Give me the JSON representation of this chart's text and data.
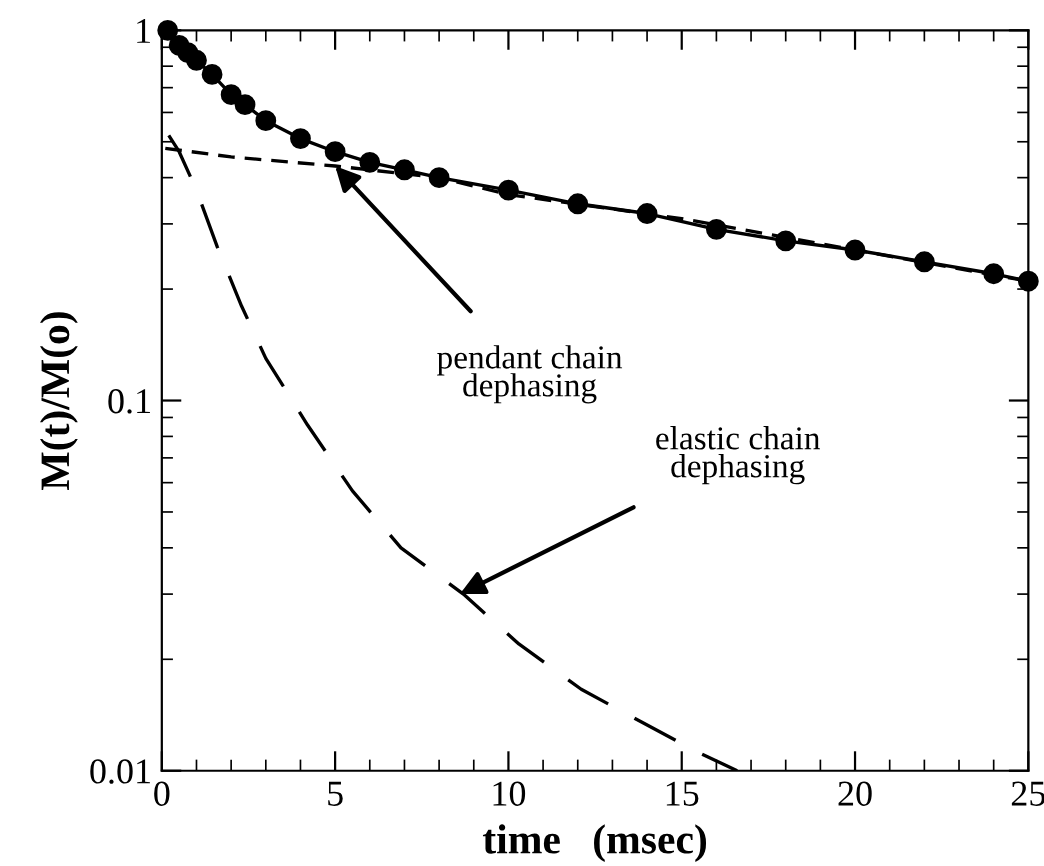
{
  "chart_data": {
    "type": "line",
    "xlabel": "time   (msec)",
    "ylabel": "M(t)/M(o)",
    "log": "y",
    "xlim": [
      0,
      25
    ],
    "ylim": [
      0.01,
      1
    ],
    "xticks": [
      0,
      5,
      10,
      15,
      20,
      25
    ],
    "yticks": [
      0.01,
      0.1,
      1
    ],
    "grid": false,
    "series": [
      {
        "type": "line",
        "marker": "circle",
        "line_style": "solid",
        "color": "#000000",
        "x": [
          0.17,
          0.5,
          0.75,
          1.0,
          1.45,
          2.0,
          2.4,
          3.0,
          4.0,
          5.0,
          6.0,
          7.0,
          8.0,
          10,
          12,
          14,
          16,
          18,
          20,
          22,
          24,
          25
        ],
        "values": [
          1.0,
          0.91,
          0.87,
          0.83,
          0.76,
          0.67,
          0.63,
          0.57,
          0.51,
          0.47,
          0.44,
          0.42,
          0.4,
          0.37,
          0.34,
          0.32,
          0.29,
          0.27,
          0.255,
          0.237,
          0.22,
          0.21
        ]
      },
      {
        "type": "line",
        "marker": "none",
        "line_style": "dashed",
        "color": "#000000",
        "x": [
          0.1,
          2,
          5,
          8,
          10,
          15,
          20,
          25
        ],
        "values": [
          0.48,
          0.455,
          0.43,
          0.4,
          0.36,
          0.31,
          0.255,
          0.21
        ]
      },
      {
        "type": "line",
        "marker": "none",
        "line_style": "dashed",
        "color": "#000000",
        "x": [
          0.2,
          0.5,
          1.0,
          1.6,
          2.3,
          3.0,
          4.2,
          5.5,
          6.9,
          8.7,
          10.3,
          12.1,
          13.8,
          15.4,
          16.6
        ],
        "values": [
          0.52,
          0.47,
          0.37,
          0.26,
          0.18,
          0.13,
          0.086,
          0.057,
          0.04,
          0.03,
          0.022,
          0.0166,
          0.0136,
          0.0113,
          0.01
        ]
      }
    ],
    "annotations": [
      {
        "text": "pendant chain\ndephasing",
        "x": 5.0,
        "y": 0.43
      },
      {
        "text": "elastic chain\ndephasing",
        "x": 8.6,
        "y": 0.03
      }
    ]
  }
}
